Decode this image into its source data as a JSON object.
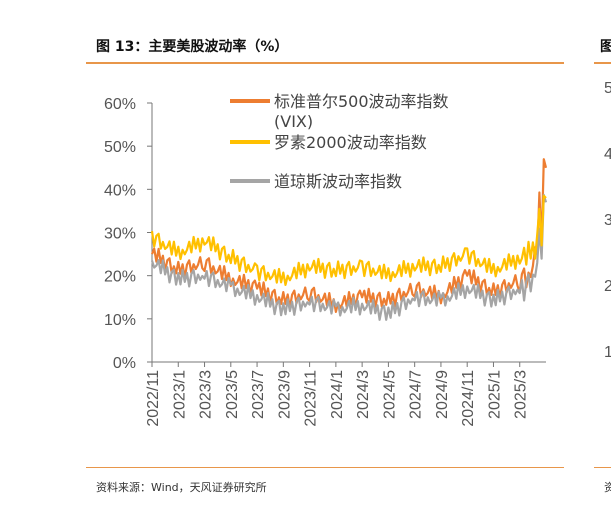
{
  "page": {
    "title": "图 13：主要美股波动率（%）",
    "source": "资料来源：Wind，天风证券研究所",
    "right_fragment": {
      "title": "图",
      "source": "资",
      "ticks": [
        "5",
        "4",
        "3",
        "2",
        "1"
      ]
    }
  },
  "colors": {
    "accent": "#e8964a",
    "vix": "#ed7d31",
    "russell": "#ffc000",
    "dow": "#a5a5a5"
  },
  "chart_data": {
    "type": "line",
    "title": "",
    "xlabel": "",
    "ylabel": "",
    "ylim": [
      0,
      60
    ],
    "yticks": [
      "0%",
      "10%",
      "20%",
      "30%",
      "40%",
      "50%",
      "60%"
    ],
    "x": [
      "2022/11",
      "2023/1",
      "2023/3",
      "2023/5",
      "2023/7",
      "2023/9",
      "2023/11",
      "2024/1",
      "2024/3",
      "2024/5",
      "2024/7",
      "2024/9",
      "2024/11",
      "2025/1",
      "2025/3",
      "2025/4"
    ],
    "xticks": [
      "2022/11",
      "2023/1",
      "2023/3",
      "2023/5",
      "2023/7",
      "2023/9",
      "2023/11",
      "2024/1",
      "2024/3",
      "2024/5",
      "2024/7",
      "2024/9",
      "2024/11",
      "2025/1",
      "2025/3"
    ],
    "legend_position": "top-right",
    "grid": false,
    "series": [
      {
        "name": "标准普尔500波动率指数(VIX)",
        "color": "#ed7d31",
        "values": [
          25,
          21,
          23,
          19,
          17,
          14,
          16,
          13,
          15,
          14,
          17,
          15,
          20,
          16,
          19,
          45
        ]
      },
      {
        "name": "罗素2000波动率指数",
        "color": "#ffc000",
        "values": [
          29,
          25,
          28,
          24,
          21,
          19,
          22,
          21,
          22,
          20,
          22,
          22,
          25,
          21,
          24,
          38
        ]
      },
      {
        "name": "道琼斯波动率指数",
        "color": "#a5a5a5",
        "values": [
          23,
          19,
          20,
          17,
          15,
          12,
          14,
          12,
          13,
          11,
          15,
          14,
          17,
          14,
          17,
          37
        ]
      }
    ]
  }
}
